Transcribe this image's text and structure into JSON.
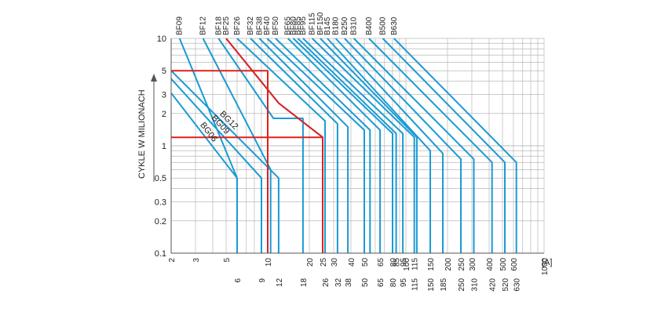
{
  "chart_data": {
    "type": "line",
    "title": "",
    "xlabel": "[A]",
    "ylabel": "CYKLE W MILIONACH",
    "x_scale": "log",
    "y_scale": "log",
    "xlim": [
      2,
      1000
    ],
    "ylim": [
      0.1,
      10
    ],
    "grid": true,
    "top_tick_labels": [
      "2",
      "3",
      "5",
      "10",
      "20",
      "25",
      "30",
      "40",
      "50",
      "65",
      "80",
      "85",
      "95",
      "100",
      "115",
      "150",
      "200",
      "250",
      "300",
      "400",
      "500",
      "600",
      "1000"
    ],
    "bottom_tick_labels": [
      "6",
      "9",
      "12",
      "18",
      "26",
      "32",
      "38",
      "50",
      "65",
      "80",
      "95",
      "115",
      "150",
      "185",
      "250",
      "310",
      "420",
      "520",
      "630"
    ],
    "y_tick_labels": [
      "10",
      "5",
      "3",
      "2",
      "1",
      "0.5",
      "0.3",
      "0.2",
      "0.1"
    ],
    "series_color": "#1a9bd4",
    "highlight_color": "#e02020",
    "series": [
      {
        "name": "BF09",
        "points": [
          [
            2.3,
            10
          ],
          [
            6,
            0.5
          ],
          [
            6,
            0.1
          ]
        ]
      },
      {
        "name": "BF12",
        "points": [
          [
            3.4,
            10
          ],
          [
            10.5,
            0.6
          ],
          [
            10.5,
            0.1
          ]
        ]
      },
      {
        "name": "BF18",
        "points": [
          [
            4.4,
            10
          ],
          [
            11,
            1.8
          ],
          [
            18,
            1.8
          ],
          [
            18,
            0.1
          ]
        ]
      },
      {
        "name": "BF25",
        "points": [
          [
            5,
            10
          ],
          [
            12,
            2.5
          ],
          [
            25,
            1.2
          ],
          [
            25,
            0.1
          ]
        ]
      },
      {
        "name": "BF26",
        "points": [
          [
            6,
            10
          ],
          [
            26,
            1.7
          ],
          [
            26,
            0.1
          ]
        ]
      },
      {
        "name": "BF32",
        "points": [
          [
            7.5,
            10
          ],
          [
            32,
            1.6
          ],
          [
            32,
            0.1
          ]
        ]
      },
      {
        "name": "BF38",
        "points": [
          [
            8.7,
            10
          ],
          [
            38,
            1.5
          ],
          [
            38,
            0.1
          ]
        ]
      },
      {
        "name": "BF40",
        "points": [
          [
            9.9,
            10
          ],
          [
            50,
            1.4
          ],
          [
            50,
            0.1
          ]
        ]
      },
      {
        "name": "BF50",
        "points": [
          [
            11.4,
            10
          ],
          [
            55,
            1.4
          ],
          [
            55,
            0.1
          ]
        ]
      },
      {
        "name": "BF65",
        "points": [
          [
            14,
            10
          ],
          [
            65,
            1.4
          ],
          [
            65,
            0.1
          ]
        ]
      },
      {
        "name": "BF80",
        "points": [
          [
            15.3,
            10
          ],
          [
            80,
            1.3
          ],
          [
            80,
            0.1
          ]
        ]
      },
      {
        "name": "BF85",
        "points": [
          [
            16.5,
            10
          ],
          [
            85,
            1.3
          ],
          [
            85,
            0.1
          ]
        ]
      },
      {
        "name": "BF95",
        "points": [
          [
            18,
            10
          ],
          [
            95,
            1.3
          ],
          [
            95,
            0.1
          ]
        ]
      },
      {
        "name": "BF115",
        "points": [
          [
            21,
            10
          ],
          [
            115,
            1.2
          ],
          [
            115,
            0.1
          ]
        ]
      },
      {
        "name": "BF150",
        "points": [
          [
            24,
            10
          ],
          [
            120,
            1.2
          ],
          [
            120,
            0.1
          ]
        ]
      },
      {
        "name": "B145",
        "points": [
          [
            27,
            10
          ],
          [
            150,
            0.9
          ],
          [
            150,
            0.1
          ]
        ]
      },
      {
        "name": "B180",
        "points": [
          [
            31,
            10
          ],
          [
            185,
            0.85
          ],
          [
            185,
            0.1
          ]
        ]
      },
      {
        "name": "B250",
        "points": [
          [
            36,
            10
          ],
          [
            250,
            0.75
          ],
          [
            250,
            0.1
          ]
        ]
      },
      {
        "name": "B310",
        "points": [
          [
            42,
            10
          ],
          [
            310,
            0.75
          ],
          [
            310,
            0.1
          ]
        ]
      },
      {
        "name": "B400",
        "points": [
          [
            54,
            10
          ],
          [
            420,
            0.7
          ],
          [
            420,
            0.1
          ]
        ]
      },
      {
        "name": "B500",
        "points": [
          [
            68,
            10
          ],
          [
            520,
            0.7
          ],
          [
            520,
            0.1
          ]
        ]
      },
      {
        "name": "B630",
        "points": [
          [
            82,
            10
          ],
          [
            630,
            0.7
          ],
          [
            630,
            0.1
          ]
        ]
      },
      {
        "name": "BG06",
        "points": [
          [
            2,
            3.1
          ],
          [
            6,
            0.5
          ],
          [
            6,
            0.1
          ]
        ]
      },
      {
        "name": "BG09",
        "points": [
          [
            2,
            4.2
          ],
          [
            9,
            0.5
          ],
          [
            9,
            0.1
          ]
        ]
      },
      {
        "name": "BG12",
        "points": [
          [
            2,
            5
          ],
          [
            12,
            0.5
          ],
          [
            12,
            0.1
          ]
        ]
      }
    ],
    "highlight_lines": [
      {
        "points": [
          [
            2,
            5
          ],
          [
            10,
            5
          ]
        ]
      },
      {
        "points": [
          [
            10,
            5
          ],
          [
            10,
            0.1
          ]
        ]
      },
      {
        "points": [
          [
            2,
            1.2
          ],
          [
            25,
            1.2
          ]
        ]
      }
    ]
  }
}
